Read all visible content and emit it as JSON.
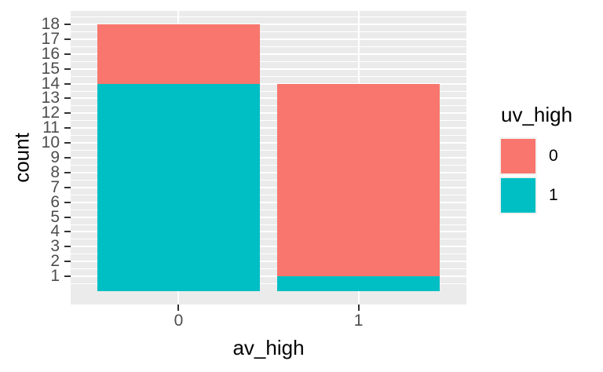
{
  "chart_data": {
    "type": "bar",
    "stacked": true,
    "title": "",
    "xlabel": "av_high",
    "ylabel": "count",
    "categories": [
      "0",
      "1"
    ],
    "series": [
      {
        "name": "1",
        "color": "#00BFC4",
        "values": [
          14,
          1
        ]
      },
      {
        "name": "0",
        "color": "#F8766D",
        "values": [
          4,
          13
        ]
      }
    ],
    "totals": [
      18,
      14
    ],
    "y_ticks": [
      1,
      2,
      3,
      4,
      5,
      6,
      7,
      8,
      9,
      10,
      11,
      12,
      13,
      14,
      15,
      16,
      17,
      18
    ],
    "ylim": [
      -0.9,
      18.9
    ],
    "bar_width_fraction": 0.9,
    "grid": true,
    "legend": {
      "title": "uv_high",
      "position": "right",
      "entries": [
        {
          "label": "0",
          "color": "#F8766D"
        },
        {
          "label": "1",
          "color": "#00BFC4"
        }
      ]
    },
    "colors": {
      "panel_background": "#EBEBEB",
      "gridline": "#FFFFFF",
      "tick_mark": "#333333",
      "tick_label": "#4D4D4D",
      "text": "#000000",
      "figure_background": "#FFFFFF"
    }
  }
}
